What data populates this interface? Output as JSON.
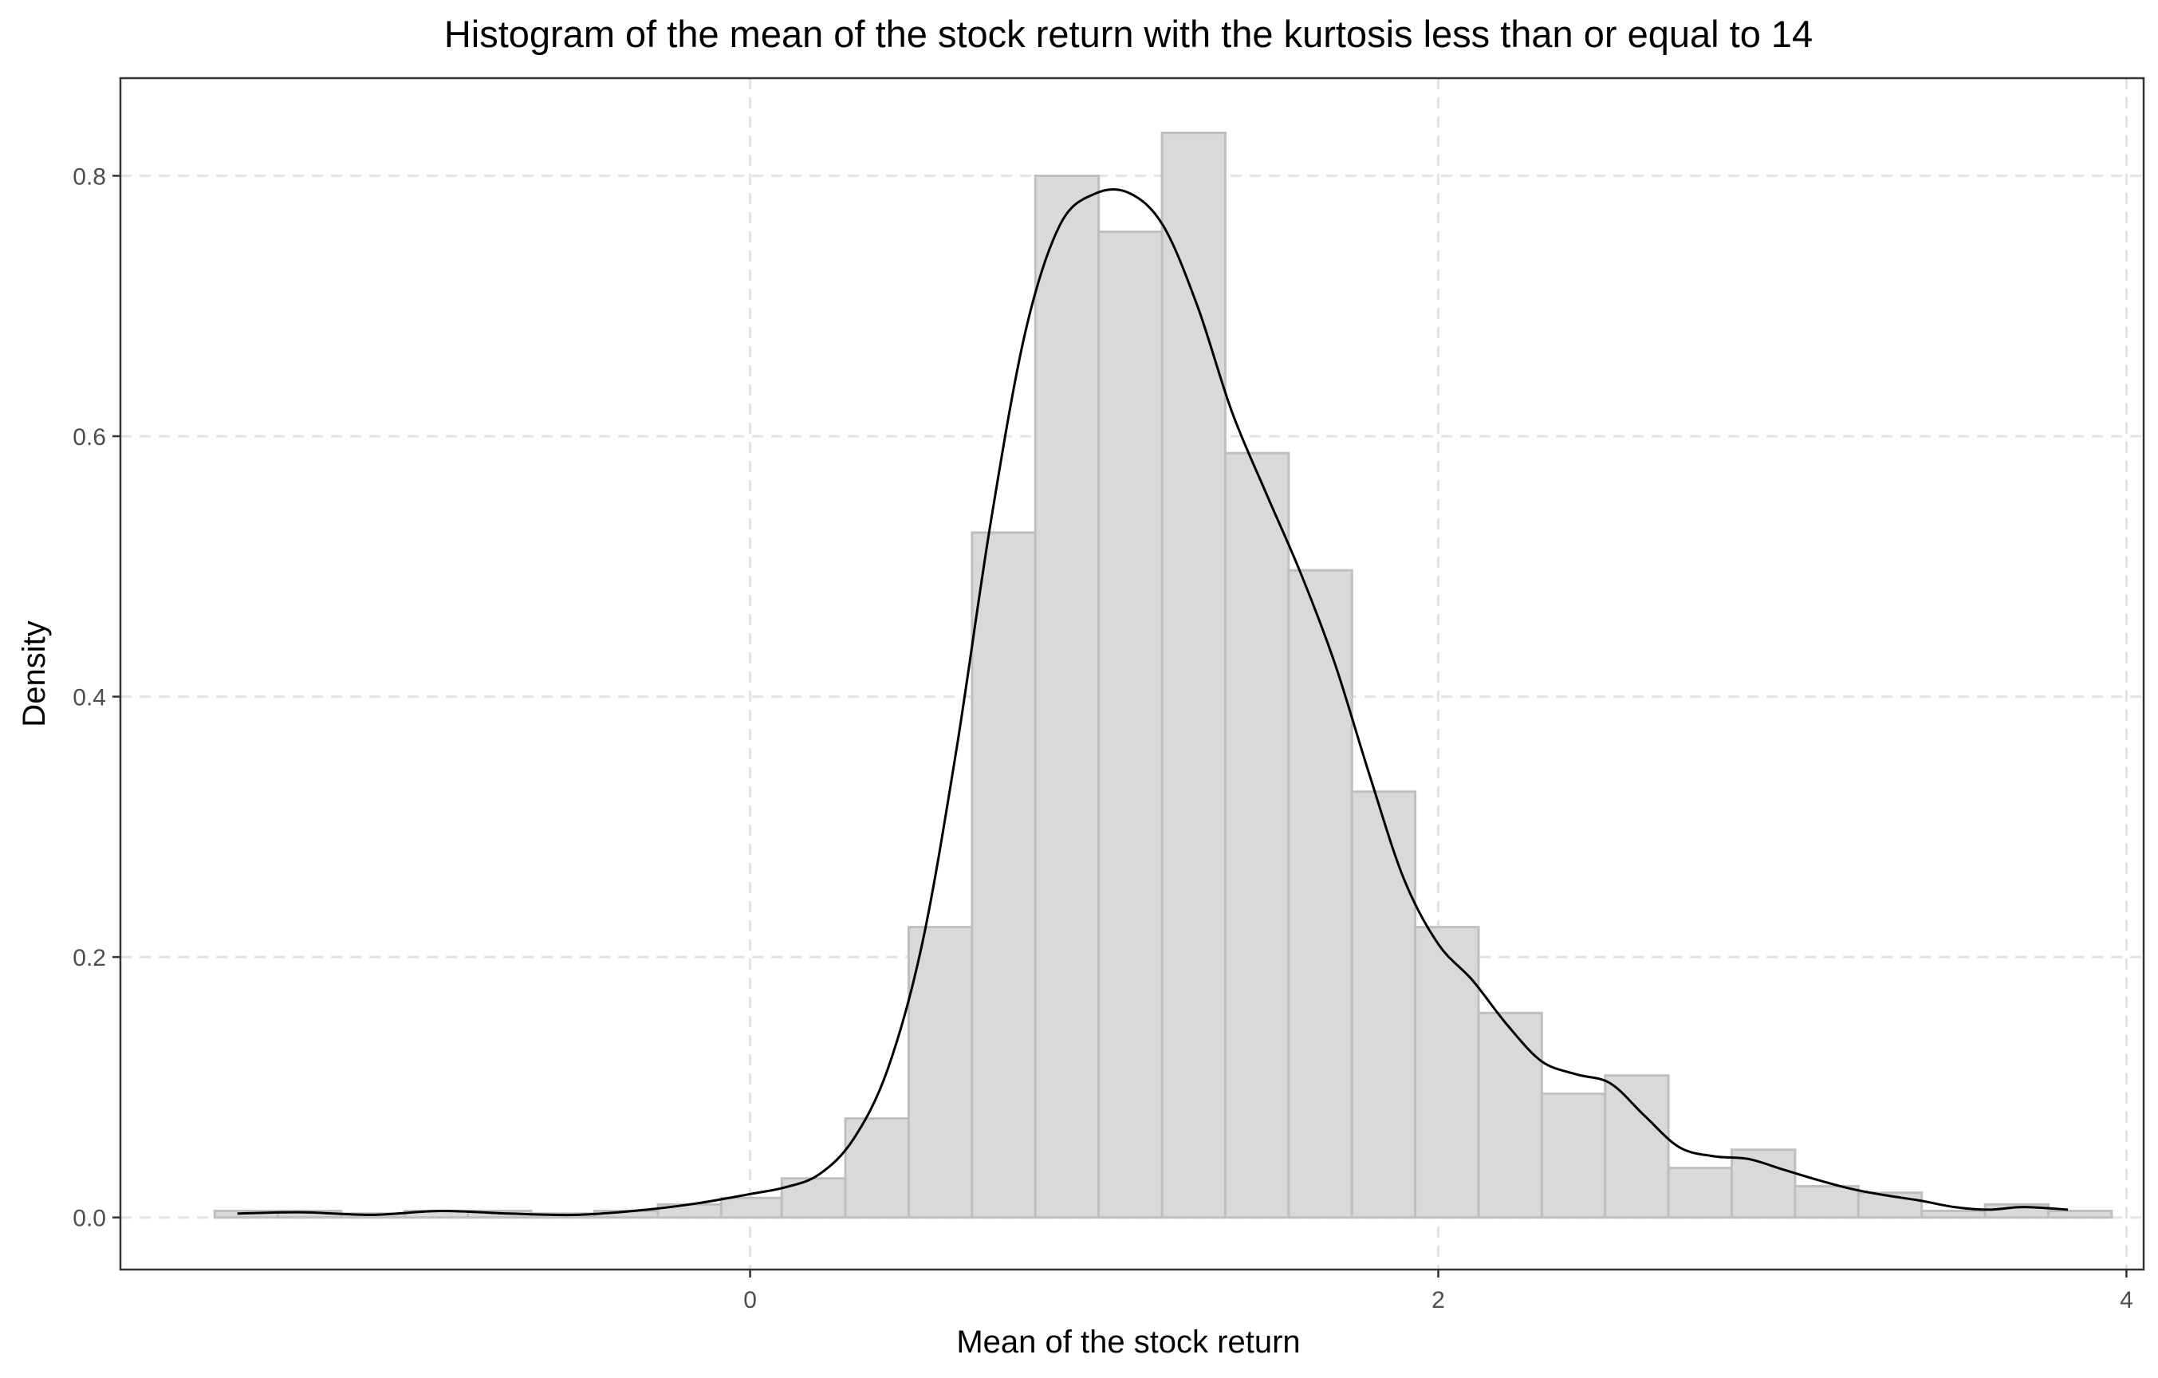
{
  "chart_data": {
    "type": "bar",
    "title": "Histogram of the mean of the stock return with the kurtosis less than or equal to 14",
    "xlabel": "Mean of the stock return",
    "ylabel": "Density",
    "xlim": [
      -1.83,
      4.05
    ],
    "ylim": [
      -0.04,
      0.875
    ],
    "x_ticks": [
      0,
      2,
      4
    ],
    "y_ticks": [
      0.0,
      0.2,
      0.4,
      0.6,
      0.8
    ],
    "x_tick_labels": [
      "0",
      "2",
      "4"
    ],
    "y_tick_labels": [
      "0.0",
      "0.2",
      "0.4",
      "0.6",
      "0.8"
    ],
    "grid": true,
    "legend": "none",
    "histogram": {
      "bin_width": 0.184,
      "bins": [
        {
          "x0": -1.556,
          "x1": -1.372,
          "density": 0.005
        },
        {
          "x0": -1.372,
          "x1": -1.188,
          "density": 0.005
        },
        {
          "x0": -1.188,
          "x1": -1.004,
          "density": 0.003
        },
        {
          "x0": -1.004,
          "x1": -0.82,
          "density": 0.005
        },
        {
          "x0": -0.82,
          "x1": -0.636,
          "density": 0.005
        },
        {
          "x0": -0.636,
          "x1": -0.452,
          "density": 0.003
        },
        {
          "x0": -0.452,
          "x1": -0.268,
          "density": 0.005
        },
        {
          "x0": -0.268,
          "x1": -0.084,
          "density": 0.01
        },
        {
          "x0": -0.084,
          "x1": 0.092,
          "density": 0.015
        },
        {
          "x0": 0.092,
          "x1": 0.277,
          "density": 0.03
        },
        {
          "x0": 0.277,
          "x1": 0.461,
          "density": 0.076
        },
        {
          "x0": 0.461,
          "x1": 0.645,
          "density": 0.223
        },
        {
          "x0": 0.645,
          "x1": 0.829,
          "density": 0.526
        },
        {
          "x0": 0.829,
          "x1": 1.013,
          "density": 0.8
        },
        {
          "x0": 1.013,
          "x1": 1.197,
          "density": 0.757
        },
        {
          "x0": 1.197,
          "x1": 1.381,
          "density": 0.833
        },
        {
          "x0": 1.381,
          "x1": 1.565,
          "density": 0.587
        },
        {
          "x0": 1.565,
          "x1": 1.749,
          "density": 0.497
        },
        {
          "x0": 1.749,
          "x1": 1.933,
          "density": 0.327
        },
        {
          "x0": 1.933,
          "x1": 2.117,
          "density": 0.223
        },
        {
          "x0": 2.117,
          "x1": 2.301,
          "density": 0.157
        },
        {
          "x0": 2.301,
          "x1": 2.485,
          "density": 0.095
        },
        {
          "x0": 2.485,
          "x1": 2.669,
          "density": 0.109
        },
        {
          "x0": 2.669,
          "x1": 2.853,
          "density": 0.038
        },
        {
          "x0": 2.853,
          "x1": 3.037,
          "density": 0.052
        },
        {
          "x0": 3.037,
          "x1": 3.221,
          "density": 0.024
        },
        {
          "x0": 3.221,
          "x1": 3.405,
          "density": 0.019
        },
        {
          "x0": 3.405,
          "x1": 3.589,
          "density": 0.005
        },
        {
          "x0": 3.589,
          "x1": 3.773,
          "density": 0.01
        },
        {
          "x0": 3.773,
          "x1": 3.957,
          "density": 0.005
        }
      ]
    },
    "density_curve": {
      "x": [
        -1.49,
        -1.3,
        -1.1,
        -0.9,
        -0.7,
        -0.5,
        -0.3,
        -0.15,
        0.0,
        0.1,
        0.2,
        0.3,
        0.4,
        0.5,
        0.6,
        0.7,
        0.8,
        0.9,
        1.0,
        1.1,
        1.2,
        1.3,
        1.4,
        1.5,
        1.6,
        1.7,
        1.8,
        1.9,
        2.0,
        2.1,
        2.2,
        2.3,
        2.4,
        2.5,
        2.6,
        2.7,
        2.8,
        2.9,
        3.0,
        3.1,
        3.2,
        3.3,
        3.4,
        3.5,
        3.6,
        3.7,
        3.83
      ],
      "y": [
        0.003,
        0.004,
        0.002,
        0.005,
        0.003,
        0.002,
        0.006,
        0.011,
        0.018,
        0.023,
        0.033,
        0.06,
        0.114,
        0.21,
        0.36,
        0.535,
        0.68,
        0.762,
        0.786,
        0.787,
        0.762,
        0.7,
        0.619,
        0.556,
        0.495,
        0.425,
        0.34,
        0.26,
        0.21,
        0.182,
        0.148,
        0.12,
        0.11,
        0.103,
        0.078,
        0.054,
        0.047,
        0.045,
        0.037,
        0.029,
        0.022,
        0.017,
        0.013,
        0.008,
        0.006,
        0.008,
        0.006
      ]
    }
  }
}
